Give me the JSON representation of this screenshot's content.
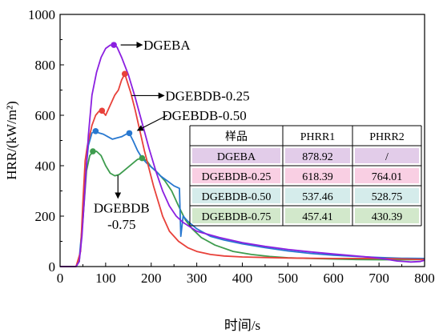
{
  "chart_data": {
    "type": "line",
    "xlabel": "时间/s",
    "ylabel": "HRR/(kW/m²)",
    "xlim": [
      0,
      800
    ],
    "ylim": [
      0,
      1000
    ],
    "xticks": [
      0,
      100,
      200,
      300,
      400,
      500,
      600,
      700,
      800
    ],
    "yticks": [
      0,
      200,
      400,
      600,
      800,
      1000
    ],
    "grid": false,
    "legend_placement": "inline-arrows",
    "series": [
      {
        "name": "DGEBA",
        "color": "#8B1FE0",
        "x": [
          0,
          35,
          42,
          48,
          55,
          62,
          70,
          80,
          90,
          100,
          110,
          118,
          125,
          135,
          150,
          165,
          180,
          195,
          210,
          225,
          240,
          255,
          270,
          300,
          350,
          400,
          450,
          500,
          550,
          600,
          650,
          700,
          740,
          770,
          790,
          800
        ],
        "y": [
          0,
          0,
          20,
          120,
          320,
          520,
          680,
          770,
          830,
          865,
          878,
          879,
          870,
          830,
          760,
          670,
          570,
          470,
          380,
          300,
          240,
          200,
          175,
          140,
          115,
          95,
          80,
          68,
          58,
          50,
          42,
          34,
          22,
          18,
          20,
          25
        ],
        "peaks": [
          {
            "x": 118,
            "y": 879
          }
        ]
      },
      {
        "name": "DGEBDB-0.25",
        "color": "#E8413A",
        "x": [
          0,
          35,
          45,
          50,
          55,
          60,
          65,
          70,
          78,
          85,
          92,
          100,
          110,
          120,
          128,
          135,
          142,
          148,
          155,
          165,
          175,
          185,
          195,
          205,
          215,
          225,
          240,
          260,
          280,
          300,
          330,
          360,
          400,
          450,
          500,
          550,
          600,
          650,
          700,
          760,
          800
        ],
        "y": [
          0,
          0,
          60,
          250,
          420,
          480,
          520,
          560,
          600,
          615,
          618,
          600,
          640,
          680,
          700,
          740,
          764,
          730,
          690,
          620,
          540,
          460,
          390,
          320,
          260,
          200,
          140,
          100,
          75,
          60,
          48,
          42,
          38,
          36,
          34,
          33,
          32,
          32,
          32,
          30,
          28
        ],
        "peaks": [
          {
            "x": 92,
            "y": 618
          },
          {
            "x": 142,
            "y": 764
          }
        ]
      },
      {
        "name": "DGEBDB-0.50",
        "color": "#2878D0",
        "x": [
          0,
          35,
          42,
          48,
          55,
          62,
          70,
          78,
          85,
          95,
          105,
          115,
          125,
          135,
          145,
          152,
          160,
          170,
          180,
          190,
          200,
          210,
          220,
          235,
          250,
          262,
          265,
          270,
          280,
          300,
          330,
          360,
          400,
          450,
          500,
          550,
          600,
          650,
          700,
          750,
          800
        ],
        "y": [
          0,
          0,
          30,
          150,
          350,
          480,
          530,
          537,
          530,
          525,
          515,
          505,
          510,
          515,
          525,
          529,
          500,
          460,
          430,
          410,
          395,
          380,
          360,
          340,
          320,
          310,
          120,
          200,
          180,
          150,
          120,
          105,
          90,
          75,
          62,
          52,
          45,
          40,
          36,
          33,
          32
        ],
        "peaks": [
          {
            "x": 78,
            "y": 537
          },
          {
            "x": 152,
            "y": 529
          }
        ]
      },
      {
        "name": "DGEBDB-0.75",
        "color": "#3E9C4E",
        "x": [
          0,
          35,
          42,
          50,
          58,
          65,
          72,
          80,
          90,
          100,
          110,
          120,
          130,
          140,
          150,
          160,
          170,
          180,
          190,
          200,
          215,
          230,
          245,
          260,
          275,
          290,
          310,
          340,
          380,
          420,
          460,
          500,
          550,
          600,
          650,
          700,
          750,
          800
        ],
        "y": [
          0,
          0,
          20,
          180,
          380,
          440,
          455,
          457,
          440,
          400,
          370,
          360,
          365,
          380,
          395,
          410,
          425,
          430,
          420,
          395,
          370,
          340,
          300,
          240,
          185,
          150,
          115,
          85,
          60,
          48,
          40,
          35,
          32,
          30,
          28,
          27,
          27,
          28
        ],
        "peaks": [
          {
            "x": 72,
            "y": 457
          },
          {
            "x": 180,
            "y": 430
          }
        ]
      }
    ],
    "annotations": [
      {
        "series": "DGEBA",
        "text": "DGEBA"
      },
      {
        "series": "DGEBDB-0.25",
        "text": "DGEBDB-0.25"
      },
      {
        "series": "DGEBDB-0.50",
        "text": "DGEBDB-0.50"
      },
      {
        "series": "DGEBDB-0.75",
        "lines": [
          "DGEBDB",
          "-0.75"
        ]
      }
    ],
    "table": {
      "headers": [
        "样品",
        "PHRR1",
        "PHRR2"
      ],
      "rows": [
        {
          "sample": "DGEBA",
          "phrr1": "878.92",
          "phrr2": "/",
          "fill": "#E2CCE9"
        },
        {
          "sample": "DGEBDB-0.25",
          "phrr1": "618.39",
          "phrr2": "764.01",
          "fill": "#F9CFE3"
        },
        {
          "sample": "DGEBDB-0.50",
          "phrr1": "537.46",
          "phrr2": "528.75",
          "fill": "#D5ECEB"
        },
        {
          "sample": "DGEBDB-0.75",
          "phrr1": "457.41",
          "phrr2": "430.39",
          "fill": "#D2E8CB"
        }
      ]
    }
  }
}
